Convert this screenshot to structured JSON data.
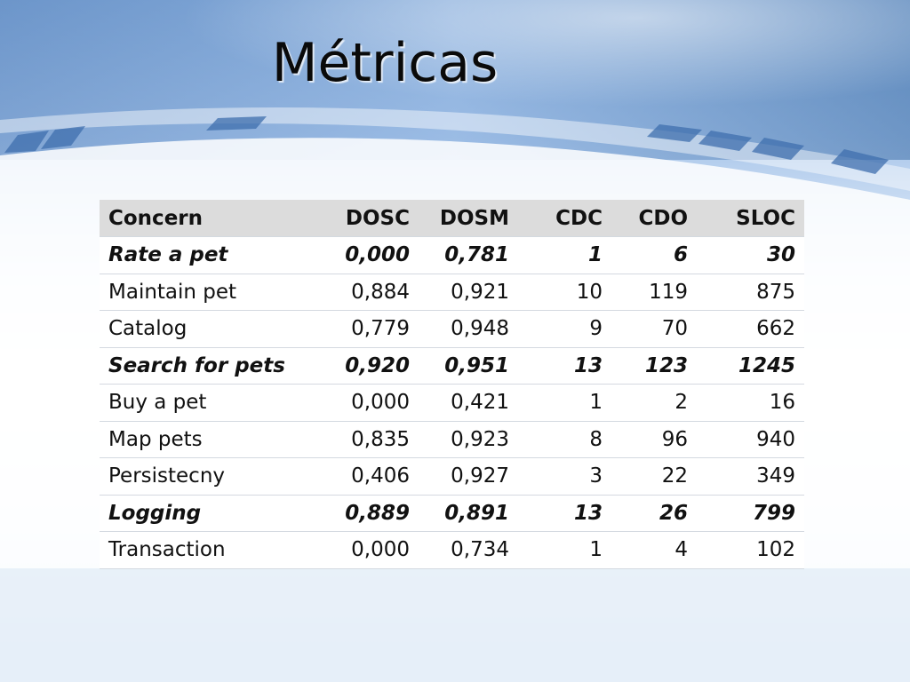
{
  "slide": {
    "title": "Métricas"
  },
  "table": {
    "headers": [
      "Concern",
      "DOSC",
      "DOSM",
      "CDC",
      "CDO",
      "SLOC"
    ],
    "rows": [
      {
        "cells": [
          "Rate a pet",
          "0,000",
          "0,781",
          "1",
          "6",
          "30"
        ],
        "highlight": true
      },
      {
        "cells": [
          "Maintain pet",
          "0,884",
          "0,921",
          "10",
          "119",
          "875"
        ],
        "highlight": false
      },
      {
        "cells": [
          "Catalog",
          "0,779",
          "0,948",
          "9",
          "70",
          "662"
        ],
        "highlight": false
      },
      {
        "cells": [
          "Search for pets",
          "0,920",
          "0,951",
          "13",
          "123",
          "1245"
        ],
        "highlight": true
      },
      {
        "cells": [
          "Buy a pet",
          "0,000",
          "0,421",
          "1",
          "2",
          "16"
        ],
        "highlight": false
      },
      {
        "cells": [
          "Map pets",
          "0,835",
          "0,923",
          "8",
          "96",
          "940"
        ],
        "highlight": false
      },
      {
        "cells": [
          "Persistecny",
          "0,406",
          "0,927",
          "3",
          "22",
          "349"
        ],
        "highlight": false
      },
      {
        "cells": [
          "Logging",
          "0,889",
          "0,891",
          "13",
          "26",
          "799"
        ],
        "highlight": true
      },
      {
        "cells": [
          "Transaction",
          "0,000",
          "0,734",
          "1",
          "4",
          "102"
        ],
        "highlight": false
      }
    ]
  },
  "colors": {
    "header_bg": "#dcdcdc",
    "row_bg": "#ffffff",
    "accent_blue": "#5b8cc9"
  }
}
